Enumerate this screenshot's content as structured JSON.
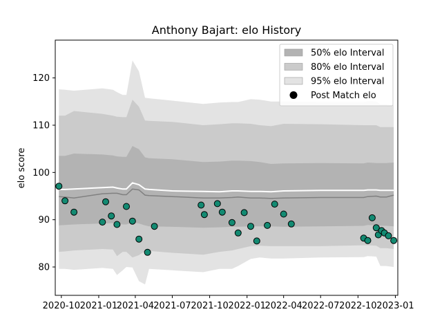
{
  "chart_data": {
    "type": "line",
    "title": "Anthony Bajart: elo History",
    "xlabel": "",
    "ylabel": "elo score",
    "xlim": [
      "2020-09-16",
      "2023-01-07"
    ],
    "ylim": [
      74,
      128
    ],
    "x_ticks": [
      "2020-10",
      "2021-01",
      "2021-04",
      "2021-07",
      "2021-10",
      "2022-01",
      "2022-04",
      "2022-07",
      "2022-10",
      "2023-01"
    ],
    "y_ticks": [
      80,
      90,
      100,
      110,
      120
    ],
    "grid": false,
    "legend_position": "top-right",
    "legend": {
      "items": [
        {
          "label": "50% elo Interval",
          "kind": "band",
          "color": "#b3b3b3"
        },
        {
          "label": "80% elo Interval",
          "kind": "band",
          "color": "#cbcbcb"
        },
        {
          "label": "95% elo Interval",
          "kind": "band",
          "color": "#e3e3e3"
        },
        {
          "label": "Post Match elo",
          "kind": "marker",
          "color": "#000000"
        }
      ]
    },
    "colors": {
      "mean_line": "#ffffff",
      "median_line": "#808080",
      "marker_fill": "#138a72",
      "marker_edge": "#000000"
    },
    "bands": {
      "x": [
        "2020-09-25",
        "2020-10-10",
        "2020-11-01",
        "2021-01-10",
        "2021-02-05",
        "2021-02-15",
        "2021-03-01",
        "2021-03-10",
        "2021-03-25",
        "2021-04-10",
        "2021-04-25",
        "2021-05-05",
        "2021-07-01",
        "2021-09-15",
        "2021-10-25",
        "2021-11-25",
        "2021-12-10",
        "2022-01-10",
        "2022-02-01",
        "2022-03-01",
        "2022-04-01",
        "2022-07-01",
        "2022-10-15",
        "2022-10-25",
        "2022-11-15",
        "2022-11-25",
        "2022-12-10",
        "2022-12-28"
      ],
      "p95_upper": [
        117.6,
        117.5,
        117.3,
        117.8,
        117.5,
        117.0,
        116.4,
        116.4,
        123.7,
        121.4,
        115.8,
        115.7,
        115.2,
        114.5,
        114.8,
        114.9,
        114.9,
        115.5,
        115.4,
        115.0,
        115.0,
        114.9,
        114.9,
        115.1,
        115.0,
        114.4,
        114.4,
        114.2
      ],
      "p80_upper": [
        112.0,
        112.0,
        113.0,
        112.4,
        112.0,
        111.8,
        111.7,
        111.7,
        115.4,
        113.9,
        111.0,
        110.9,
        110.7,
        110.0,
        110.2,
        110.4,
        110.4,
        110.3,
        110.0,
        109.8,
        110.3,
        110.2,
        110.0,
        110.0,
        110.0,
        109.6,
        109.6,
        109.6
      ],
      "p50_upper": [
        103.5,
        103.5,
        104.0,
        103.8,
        103.6,
        103.4,
        103.3,
        103.3,
        105.6,
        104.9,
        103.2,
        103.0,
        102.8,
        102.2,
        102.3,
        102.5,
        102.5,
        102.4,
        102.2,
        101.8,
        101.9,
        102.0,
        101.9,
        102.1,
        102.0,
        102.0,
        102.0,
        102.1
      ],
      "median": [
        94.9,
        94.8,
        94.6,
        95.5,
        95.6,
        95.6,
        95.3,
        95.3,
        96.5,
        96.3,
        95.2,
        95.1,
        94.9,
        94.6,
        94.6,
        94.7,
        94.8,
        94.6,
        94.6,
        94.5,
        94.6,
        94.7,
        94.7,
        94.9,
        95.0,
        94.8,
        94.8,
        95.2
      ],
      "mean": [
        96.4,
        96.4,
        96.5,
        96.8,
        96.9,
        96.7,
        96.5,
        96.5,
        97.8,
        97.4,
        96.5,
        96.4,
        96.1,
        96.0,
        95.9,
        96.1,
        96.1,
        96.0,
        96.0,
        95.9,
        96.1,
        96.2,
        96.2,
        96.3,
        96.3,
        96.2,
        96.2,
        96.2
      ],
      "p50_lower": [
        88.8,
        88.9,
        89.0,
        89.2,
        89.3,
        89.2,
        89.0,
        89.0,
        89.4,
        89.2,
        88.8,
        88.6,
        88.5,
        88.3,
        88.4,
        88.5,
        88.5,
        88.6,
        88.6,
        88.6,
        88.5,
        88.6,
        88.7,
        88.9,
        88.8,
        88.7,
        88.7,
        88.6
      ],
      "p80_lower": [
        83.2,
        83.3,
        83.5,
        83.8,
        83.7,
        82.3,
        83.2,
        83.2,
        82.0,
        82.5,
        83.4,
        83.4,
        83.0,
        82.6,
        83.2,
        83.5,
        83.8,
        84.4,
        84.5,
        84.4,
        84.4,
        84.4,
        84.6,
        84.6,
        84.5,
        84.0,
        84.0,
        83.8
      ],
      "p95_lower": [
        79.6,
        79.6,
        79.4,
        79.8,
        79.6,
        78.3,
        79.3,
        80.0,
        79.9,
        77.0,
        76.3,
        79.6,
        79.3,
        78.9,
        79.6,
        79.6,
        80.2,
        81.7,
        82.0,
        81.8,
        81.8,
        82.0,
        82.1,
        82.3,
        82.2,
        80.2,
        80.2,
        80.0
      ]
    },
    "series": [
      {
        "name": "Post Match elo",
        "x": [
          "2020-09-25",
          "2020-10-10",
          "2020-11-01",
          "2021-01-10",
          "2021-01-18",
          "2021-02-01",
          "2021-02-15",
          "2021-03-10",
          "2021-03-25",
          "2021-04-10",
          "2021-05-01",
          "2021-05-18",
          "2021-09-10",
          "2021-09-18",
          "2021-10-20",
          "2021-11-01",
          "2021-11-25",
          "2021-12-10",
          "2021-12-25",
          "2022-01-10",
          "2022-01-25",
          "2022-02-20",
          "2022-03-10",
          "2022-04-01",
          "2022-04-20",
          "2022-10-15",
          "2022-10-25",
          "2022-11-05",
          "2022-11-15",
          "2022-11-20",
          "2022-11-28",
          "2022-12-05",
          "2022-12-15",
          "2022-12-28"
        ],
        "values": [
          97.1,
          94.0,
          91.6,
          89.5,
          93.8,
          90.8,
          89.0,
          92.8,
          89.7,
          85.9,
          83.1,
          88.6,
          93.1,
          91.1,
          93.4,
          91.6,
          89.4,
          87.2,
          91.5,
          88.6,
          85.5,
          88.8,
          93.3,
          91.2,
          89.1,
          86.1,
          85.6,
          90.4,
          88.3,
          86.8,
          87.7,
          87.2,
          86.6,
          85.6
        ]
      }
    ]
  }
}
